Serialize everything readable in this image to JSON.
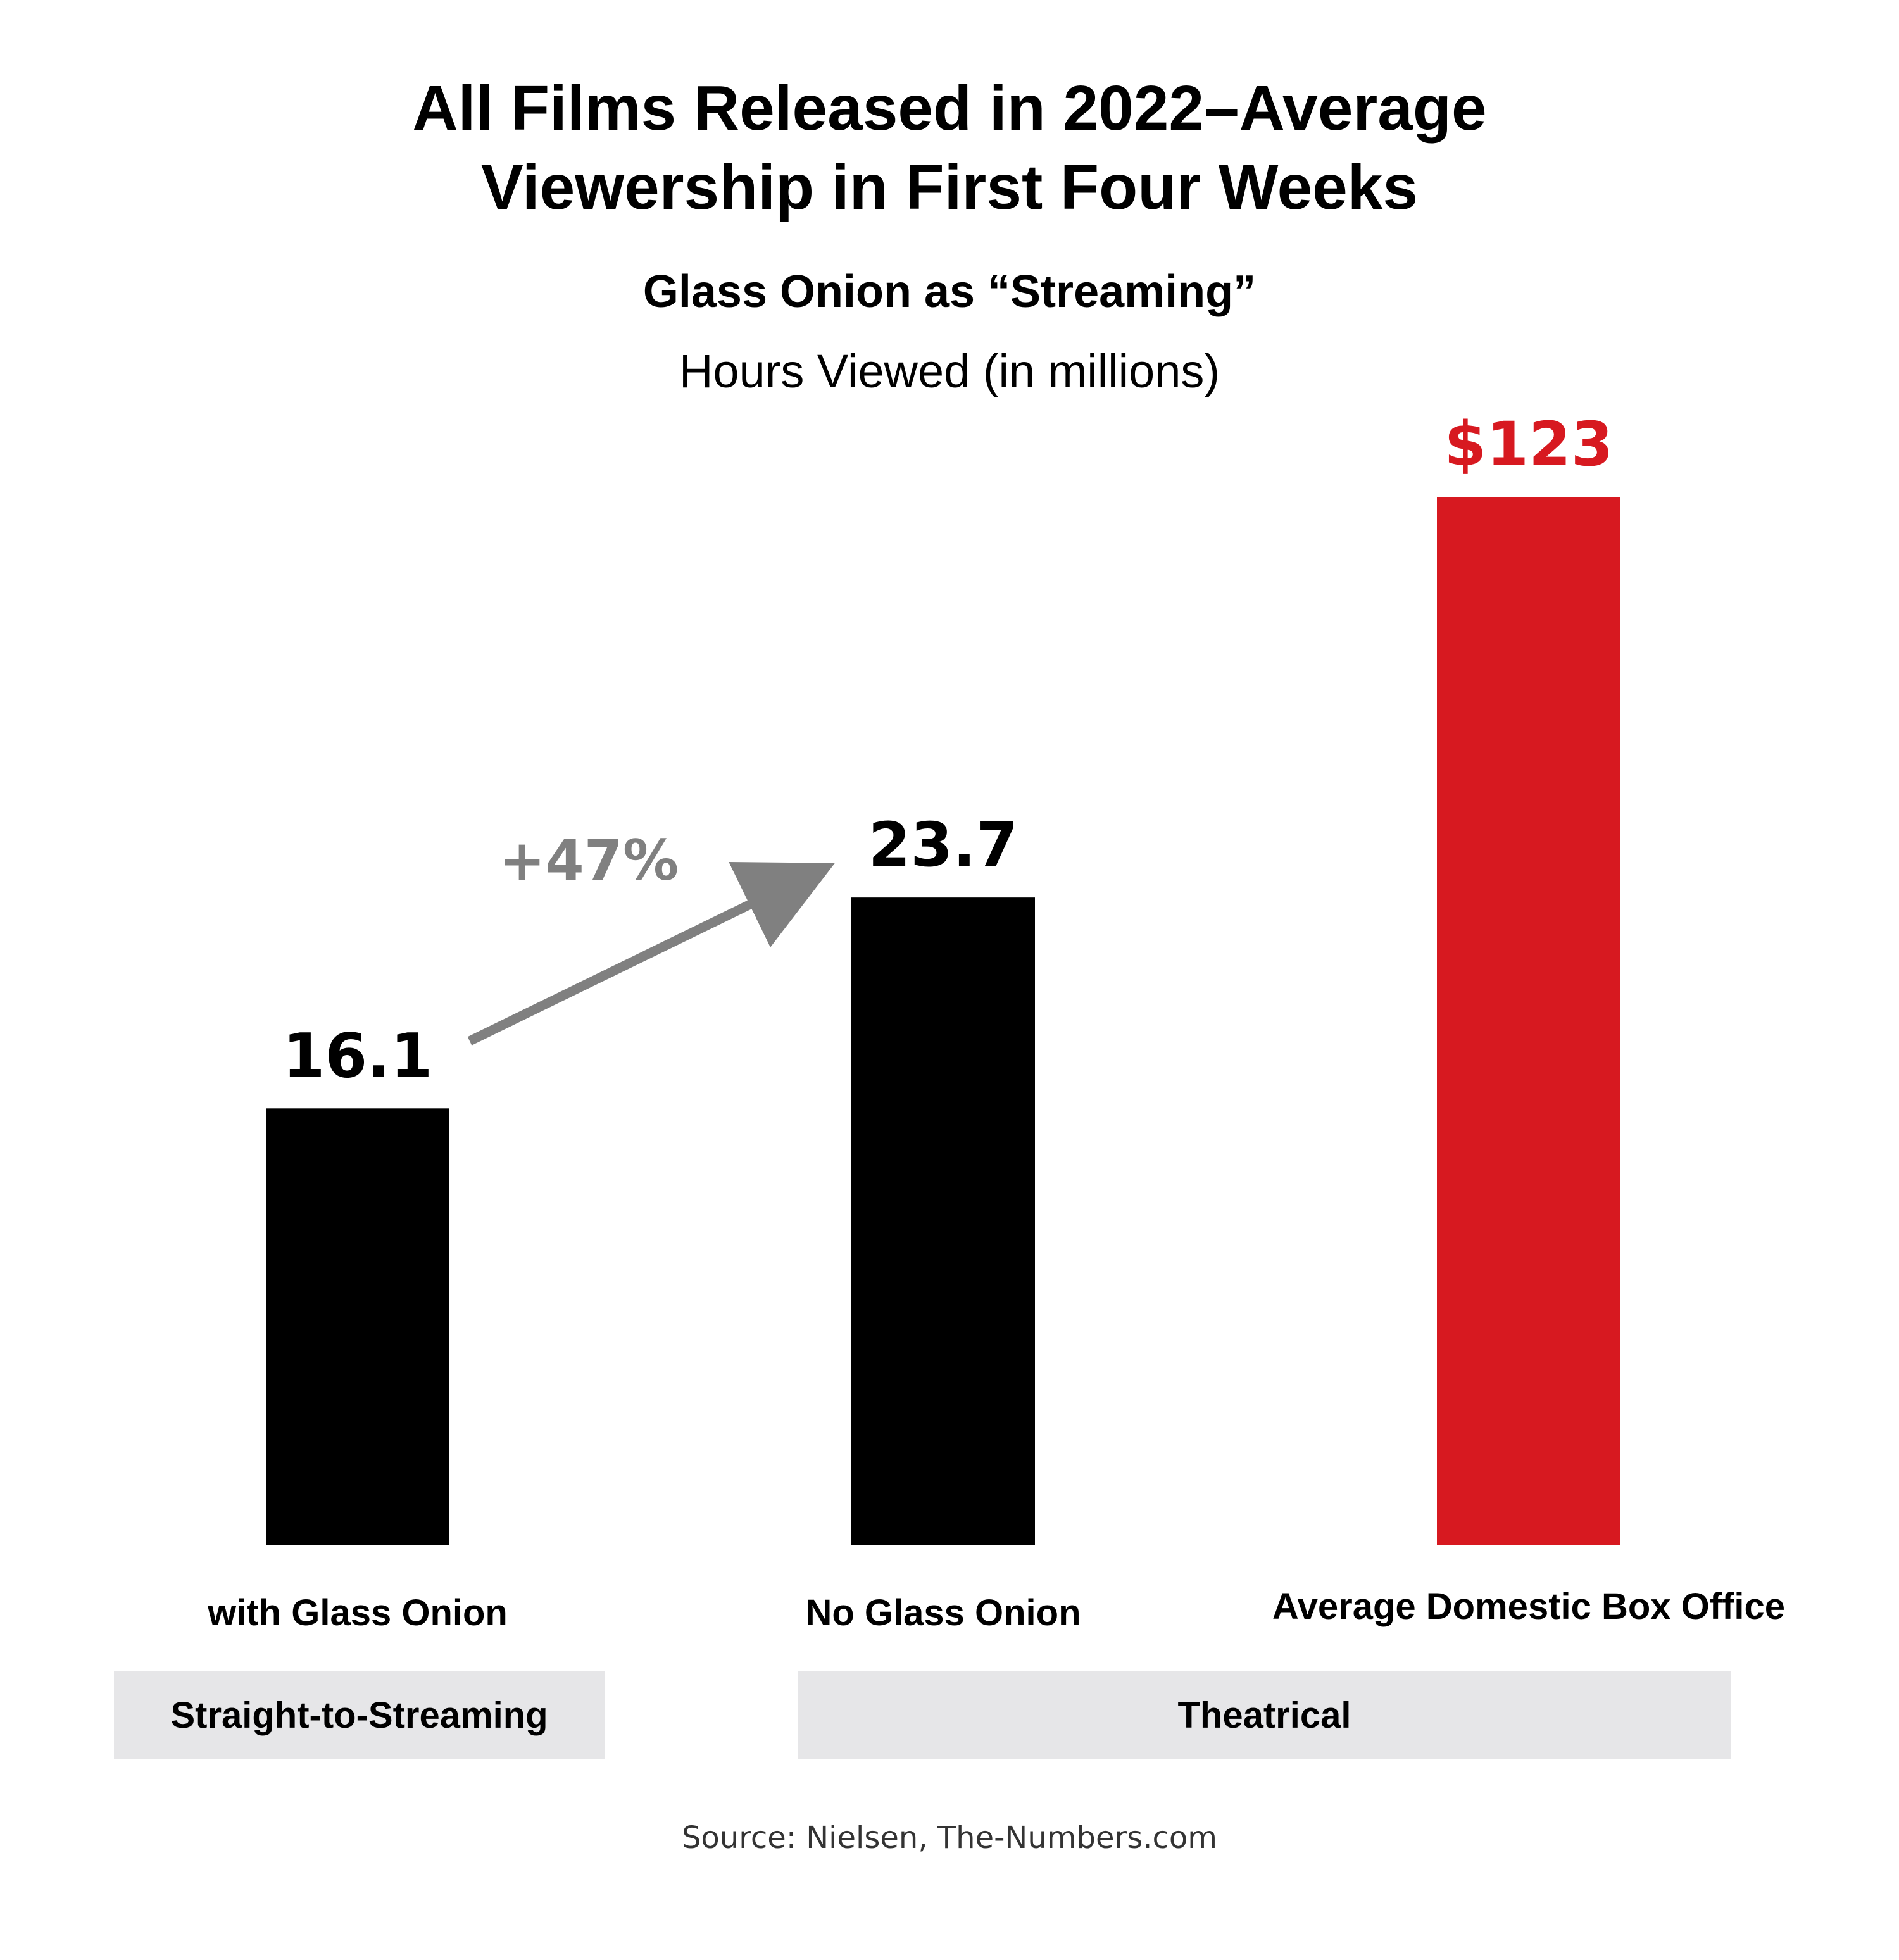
{
  "colors": {
    "bar_default": "#000000",
    "bar_highlight": "#d71920",
    "value_highlight": "#d71920",
    "arrow": "#808080",
    "group_bg": "#e6e6e8"
  },
  "chart_data": {
    "type": "bar",
    "title_line1": "All Films Released in 2022–Average",
    "title_line2": "Viewership in First Four Weeks",
    "subtitle": "Glass Onion as “Streaming”",
    "ylabel": "Hours Viewed (in millions)",
    "categories": [
      "with Glass Onion",
      "No Glass Onion",
      "Average Domestic Box Office"
    ],
    "values": [
      16.1,
      23.7,
      123
    ],
    "value_labels": [
      "16.1",
      "23.7",
      "$123"
    ],
    "highlight": [
      false,
      false,
      true
    ],
    "groups": [
      {
        "label": "Straight-to-Streaming",
        "categories": [
          "with Glass Onion"
        ]
      },
      {
        "label": "Theatrical",
        "categories": [
          "No Glass Onion",
          "Average Domestic Box Office"
        ]
      }
    ],
    "annotation": {
      "text": "+47%",
      "from": "with Glass Onion",
      "to": "No Glass Onion"
    },
    "grid": false,
    "legend": "none"
  },
  "source": "Source: Nielsen, The-Numbers.com"
}
